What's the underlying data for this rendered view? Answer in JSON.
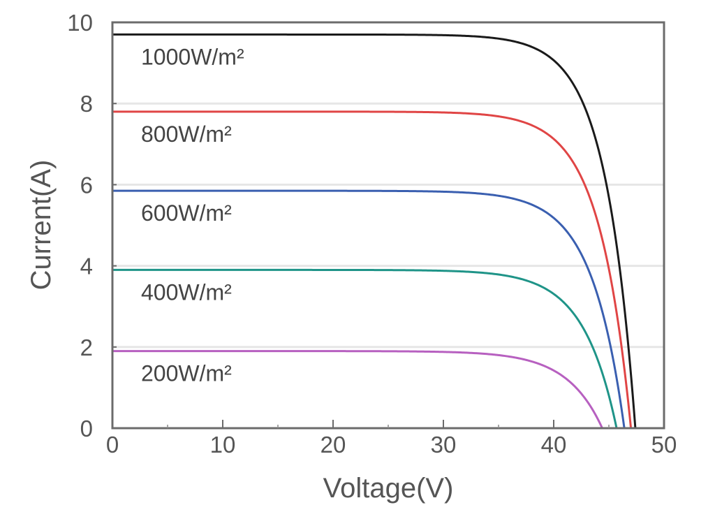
{
  "chart_data": {
    "type": "line",
    "title": "",
    "xlabel": "Voltage(V)",
    "ylabel": "Current(A)",
    "xlim": [
      0,
      50
    ],
    "ylim": [
      0,
      10
    ],
    "xticks": [
      "0",
      "10",
      "20",
      "30",
      "40",
      "50"
    ],
    "yticks": [
      "0",
      "2",
      "4",
      "6",
      "8",
      "10"
    ],
    "grid": "horizontal",
    "series": [
      {
        "name": "1000W/m²",
        "color": "#1a1a1a",
        "isc": 9.7,
        "voc": 47.4,
        "knee_v": 36
      },
      {
        "name": "800W/m²",
        "color": "#e04545",
        "isc": 7.8,
        "voc": 47.0,
        "knee_v": 35
      },
      {
        "name": "600W/m²",
        "color": "#3a5fb0",
        "isc": 5.85,
        "voc": 46.4,
        "knee_v": 34
      },
      {
        "name": "400W/m²",
        "color": "#1f9488",
        "isc": 3.9,
        "voc": 45.7,
        "knee_v": 33
      },
      {
        "name": "200W/m²",
        "color": "#b760c0",
        "isc": 1.9,
        "voc": 44.4,
        "knee_v": 31
      }
    ]
  }
}
